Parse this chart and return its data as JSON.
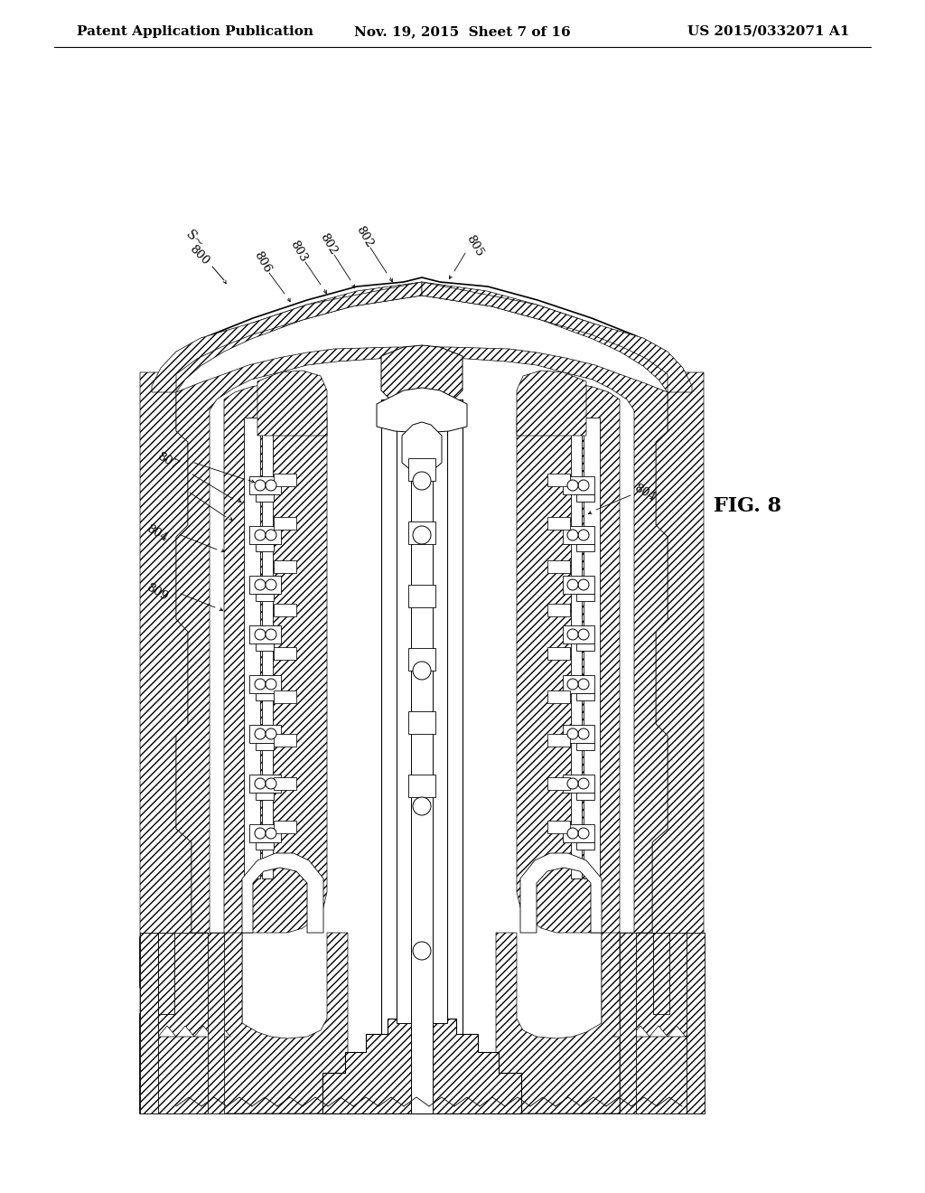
{
  "background_color": "#ffffff",
  "header_left": "Patent Application Publication",
  "header_center": "Nov. 19, 2015  Sheet 7 of 16",
  "header_right": "US 2015/0332071 A1",
  "fig_label": "FIG. 8",
  "header_font_size": 11,
  "label_font_size": 9.5,
  "fig_label_font_size": 16,
  "line_color": "#000000",
  "hatch_color": "#000000"
}
